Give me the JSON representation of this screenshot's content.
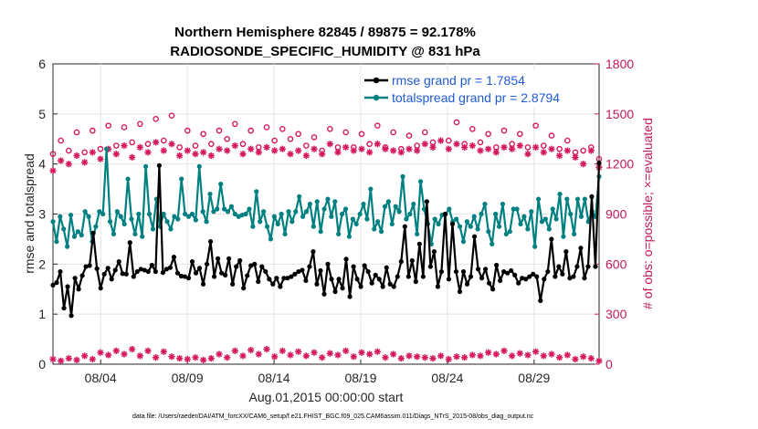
{
  "chart_data": {
    "type": "line",
    "title": "Northern Hemisphere 82845 / 89875 = 92.178%",
    "subtitle": "RADIOSONDE_SPECIFIC_HUMIDITY @ 831 hPa",
    "xlabel": "Aug.01,2015 00:00:00 start",
    "ylabel": "rmse and totalspread",
    "y2label": "# of obs: o=possible; ×=evaluated",
    "footer": "data file: /Users/raeder/DAI/ATM_forcXX/CAM6_setup/f.e21.FHIST_BGC.f09_025.CAM6assim.011/Diags_NTrS_2015-08/obs_diag_output.nc",
    "xticks": [
      "08/04",
      "08/09",
      "08/14",
      "08/19",
      "08/24",
      "08/29"
    ],
    "xtick_days": [
      4,
      9,
      14,
      19,
      24,
      29
    ],
    "xlim_days": [
      1.25,
      32.75
    ],
    "ylim": [
      0,
      6
    ],
    "yticks": [
      "0",
      "1",
      "2",
      "3",
      "4",
      "5",
      "6"
    ],
    "y2lim": [
      0,
      1800
    ],
    "y2ticks": [
      "0",
      "300",
      "600",
      "900",
      "1200",
      "1500",
      "1800"
    ],
    "grid": true,
    "legend_position": "top-right",
    "colors": {
      "rmse": "#000000",
      "spread": "#008080",
      "obs": "#d6185e",
      "right_axis": "#c2185b"
    },
    "series": [
      {
        "name": "rmse grand pr = 1.7854",
        "marker": "dot",
        "values": [
          1.58,
          1.63,
          1.85,
          1.12,
          1.55,
          0.97,
          1.72,
          1.5,
          1.77,
          1.95,
          1.97,
          2.62,
          1.91,
          1.52,
          1.8,
          1.92,
          1.7,
          1.88,
          2.05,
          1.81,
          1.8,
          2.43,
          1.75,
          1.85,
          1.9,
          1.88,
          1.85,
          1.98,
          1.85,
          3.97,
          1.83,
          1.9,
          1.93,
          2.14,
          1.82,
          1.76,
          1.75,
          1.72,
          2.05,
          1.82,
          1.92,
          1.6,
          2.0,
          2.45,
          1.75,
          2.11,
          1.82,
          1.78,
          2.11,
          1.6,
          1.95,
          2.07,
          1.52,
          1.77,
          1.97,
          2.0,
          1.65,
          1.95,
          1.85,
          1.7,
          1.6,
          1.72,
          1.55,
          1.72,
          1.72,
          1.75,
          1.8,
          1.85,
          1.88,
          1.67,
          1.95,
          2.25,
          1.6,
          1.87,
          1.4,
          2.0,
          1.7,
          1.45,
          1.7,
          1.52,
          2.1,
          1.35,
          1.95,
          1.7,
          1.55,
          1.97,
          1.85,
          1.62,
          1.78,
          1.7,
          1.55,
          1.93,
          1.6,
          1.55,
          1.75,
          2.05,
          2.75,
          1.75,
          2.07,
          1.65,
          2.4,
          1.75,
          3.25,
          1.95,
          2.25,
          1.55,
          1.85,
          3.0,
          1.7,
          2.8,
          1.85,
          1.45,
          1.85,
          1.6,
          1.75,
          2.55,
          1.9,
          1.72,
          1.9,
          1.62,
          1.5,
          1.98,
          1.67,
          1.85,
          1.82,
          1.87,
          1.78,
          1.62,
          1.72,
          1.7,
          1.75,
          1.8,
          1.75,
          1.27,
          1.7,
          1.85,
          2.5,
          1.75,
          1.95,
          1.8,
          2.25,
          1.72,
          1.75,
          1.95,
          2.32,
          1.72,
          1.95,
          3.35,
          1.95,
          4.02
        ]
      },
      {
        "name": "totalspread grand pr = 2.8794",
        "marker": "dot",
        "values": [
          2.85,
          2.45,
          2.95,
          2.7,
          2.35,
          2.98,
          2.55,
          2.65,
          2.58,
          3.05,
          2.95,
          2.45,
          2.75,
          3.05,
          3.0,
          4.3,
          2.85,
          2.6,
          3.05,
          2.95,
          2.8,
          3.7,
          2.9,
          2.6,
          3.0,
          2.55,
          3.95,
          3.0,
          2.7,
          3.3,
          2.75,
          3.0,
          2.85,
          2.7,
          2.95,
          2.9,
          3.7,
          3.0,
          2.95,
          3.0,
          2.88,
          3.95,
          3.05,
          2.85,
          3.4,
          3.05,
          3.1,
          3.6,
          3.1,
          3.05,
          3.15,
          3.0,
          2.95,
          2.98,
          3.0,
          3.1,
          2.75,
          3.45,
          2.85,
          3.05,
          2.75,
          2.5,
          2.95,
          2.8,
          3.0,
          2.6,
          3.05,
          2.85,
          3.05,
          3.35,
          2.95,
          3.05,
          3.2,
          2.75,
          3.25,
          2.65,
          3.1,
          3.3,
          2.95,
          3.25,
          2.6,
          3.0,
          3.1,
          2.55,
          2.9,
          2.8,
          3.0,
          3.2,
          2.9,
          3.5,
          2.7,
          2.85,
          2.65,
          3.15,
          3.25,
          2.8,
          3.15,
          3.05,
          3.75,
          2.9,
          3.0,
          3.2,
          2.6,
          3.65,
          3.1,
          2.8,
          2.4,
          2.9,
          2.8,
          2.98,
          3.0,
          3.1,
          2.85,
          2.9,
          2.75,
          2.45,
          2.85,
          2.75,
          2.95,
          2.7,
          3.0,
          3.2,
          2.65,
          2.4,
          3.0,
          2.75,
          3.2,
          2.6,
          2.65,
          3.1,
          3.1,
          2.8,
          2.95,
          2.7,
          3.05,
          2.35,
          3.3,
          2.85,
          2.9,
          2.7,
          3.1,
          2.9,
          3.4,
          2.55,
          3.3,
          3.0,
          2.6,
          3.3,
          2.95,
          3.3,
          2.85,
          3.05,
          2.95,
          3.75
        ]
      },
      {
        "name": "possible",
        "marker": "circle",
        "axis": "right",
        "values": [
          1260,
          1340,
          1280,
          1390,
          1270,
          1400,
          1290,
          1430,
          1310,
          1420,
          1330,
          1440,
          1320,
          1470,
          1340,
          1490,
          1300,
          1400,
          1310,
          1380,
          1320,
          1400,
          1350,
          1440,
          1320,
          1400,
          1300,
          1420,
          1340,
          1410,
          1350,
          1380,
          1310,
          1360,
          1280,
          1410,
          1300,
          1390,
          1300,
          1380,
          1320,
          1430,
          1300,
          1390,
          1290,
          1370,
          1310,
          1390,
          1330,
          1560,
          1340,
          1450,
          1320,
          1410,
          1330,
          1380,
          1300,
          1400,
          1320,
          1380,
          1300,
          1430,
          1310,
          1370,
          1290,
          1340,
          1270,
          1280,
          1300,
          1230
        ],
        "x_step_days": 0.4565,
        "x_start_day": 1.25
      },
      {
        "name": "evaluated",
        "marker": "asterisk",
        "axis": "right",
        "values": [
          1160,
          1220,
          1200,
          1250,
          1210,
          1270,
          1230,
          1290,
          1260,
          1310,
          1240,
          1300,
          1270,
          1330,
          1280,
          1320,
          1250,
          1280,
          1260,
          1270,
          1250,
          1290,
          1280,
          1310,
          1260,
          1290,
          1270,
          1300,
          1280,
          1290,
          1260,
          1280,
          1250,
          1290,
          1260,
          1320,
          1270,
          1300,
          1280,
          1290,
          1270,
          1320,
          1290,
          1280,
          1270,
          1290,
          1280,
          1320,
          1300,
          1340,
          1290,
          1320,
          1300,
          1310,
          1280,
          1290,
          1270,
          1300,
          1290,
          1310,
          1260,
          1300,
          1270,
          1290,
          1250,
          1280,
          1240,
          1200,
          1280,
          1180
        ],
        "x_step_days": 0.4565,
        "x_start_day": 1.25
      },
      {
        "name": "evaluated-bottom",
        "marker": "asterisk",
        "axis": "right",
        "values": [
          30,
          20,
          35,
          25,
          50,
          30,
          70,
          55,
          80,
          60,
          90,
          50,
          80,
          40,
          75,
          45,
          35,
          30,
          40,
          25,
          35,
          60,
          40,
          80,
          50,
          85,
          60,
          90,
          45,
          80,
          55,
          75,
          50,
          70,
          40,
          65,
          55,
          80,
          45,
          70,
          60,
          75,
          40,
          60,
          35,
          50,
          45,
          40,
          35,
          50,
          30,
          45,
          40,
          55,
          50,
          70,
          60,
          80,
          50,
          65,
          55,
          75,
          50,
          60,
          40,
          55,
          30,
          45,
          35,
          20
        ],
        "x_step_days": 0.4565,
        "x_start_day": 1.25
      }
    ]
  }
}
